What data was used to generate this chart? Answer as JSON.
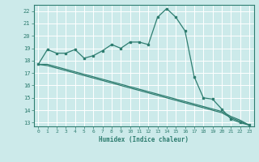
{
  "xlabel": "Humidex (Indice chaleur)",
  "ylabel": "",
  "xlim": [
    -0.5,
    23.5
  ],
  "ylim": [
    12.7,
    22.5
  ],
  "bg_color": "#cceaea",
  "grid_color": "#ffffff",
  "line_color": "#2e7d70",
  "xticks": [
    0,
    1,
    2,
    3,
    4,
    5,
    6,
    7,
    8,
    9,
    10,
    11,
    12,
    13,
    14,
    15,
    16,
    17,
    18,
    19,
    20,
    21,
    22,
    23
  ],
  "yticks": [
    13,
    14,
    15,
    16,
    17,
    18,
    19,
    20,
    21,
    22
  ],
  "series_main": [
    17.7,
    18.9,
    18.6,
    18.6,
    18.9,
    18.2,
    18.4,
    18.8,
    19.3,
    19.0,
    19.5,
    19.5,
    19.3,
    21.5,
    22.2,
    21.5,
    20.4,
    16.7,
    15.0,
    14.9,
    14.1,
    13.3,
    13.0,
    12.8
  ],
  "series_line1": [
    17.7,
    17.7,
    17.5,
    17.3,
    17.1,
    16.9,
    16.7,
    16.5,
    16.3,
    16.1,
    15.9,
    15.7,
    15.5,
    15.3,
    15.1,
    14.9,
    14.7,
    14.5,
    14.3,
    14.1,
    13.9,
    13.5,
    13.2,
    12.8
  ],
  "series_line2": [
    17.7,
    17.6,
    17.4,
    17.2,
    17.0,
    16.8,
    16.6,
    16.4,
    16.2,
    16.0,
    15.8,
    15.6,
    15.4,
    15.2,
    15.0,
    14.8,
    14.6,
    14.4,
    14.2,
    14.0,
    13.8,
    13.4,
    13.1,
    12.8
  ]
}
